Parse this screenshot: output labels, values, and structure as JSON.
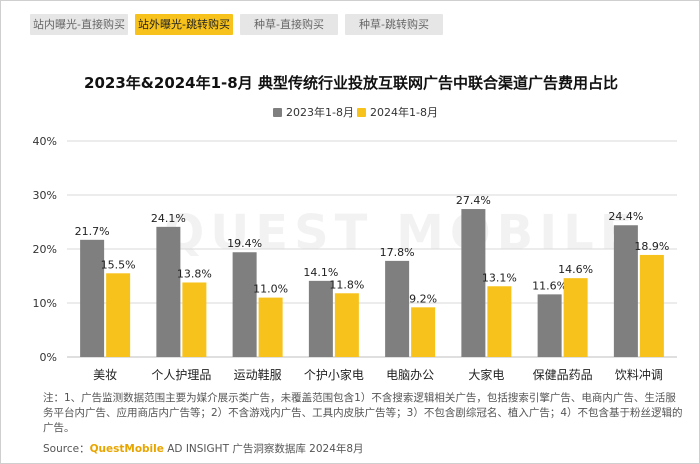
{
  "tabs": [
    {
      "label": "站内曝光-直接购买",
      "active": false
    },
    {
      "label": "站外曝光-跳转购买",
      "active": true
    },
    {
      "label": "种草-直接购买",
      "active": false
    },
    {
      "label": "种草-跳转购买",
      "active": false
    }
  ],
  "watermark": "QUEST MOBILE",
  "colors": {
    "series_2023": "#7f7f7f",
    "series_2024": "#f7c21b",
    "grid": "#d9d9d9"
  },
  "chart_data": {
    "type": "bar",
    "title": "2023年&2024年1-8月 典型传统行业投放互联网广告中联合渠道广告费用占比",
    "categories": [
      "美妆",
      "个人护理品",
      "运动鞋服",
      "个护小家电",
      "电脑办公",
      "大家电",
      "保健品药品",
      "饮料冲调"
    ],
    "series": [
      {
        "name": "2023年1-8月",
        "values": [
          21.7,
          24.1,
          19.4,
          14.1,
          17.8,
          27.4,
          11.6,
          24.4
        ],
        "labels": [
          "21.7%",
          "24.1%",
          "19.4%",
          "14.1%",
          "17.8%",
          "27.4%",
          "11.6%",
          "24.4%"
        ]
      },
      {
        "name": "2024年1-8月",
        "values": [
          15.5,
          13.8,
          11.0,
          11.8,
          9.2,
          13.1,
          14.6,
          18.9
        ],
        "labels": [
          "15.5%",
          "13.8%",
          "11.0%",
          "11.8%",
          "9.2%",
          "13.1%",
          "14.6%",
          "18.9%"
        ]
      }
    ],
    "yticks": [
      "0%",
      "10%",
      "20%",
      "30%",
      "40%"
    ],
    "ylim": [
      0,
      40
    ],
    "grid": true,
    "legend": "top-center",
    "xlabel": "",
    "ylabel": ""
  },
  "notes": "注：1、广告监测数据范围主要为媒介展示类广告，未覆盖范围包含1）不含搜索逻辑相关广告，包括搜索引擎广告、电商内广告、生活服务平台内广告、应用商店内广告等；2）不含游戏内广告、工具内皮肤广告等；3）不包含剧综冠名、植入广告；4）不包含基于粉丝逻辑的广告。",
  "source": {
    "prefix": "Source：",
    "brand": "QuestMobile",
    "rest": " AD INSIGHT 广告洞察数据库 2024年8月"
  }
}
